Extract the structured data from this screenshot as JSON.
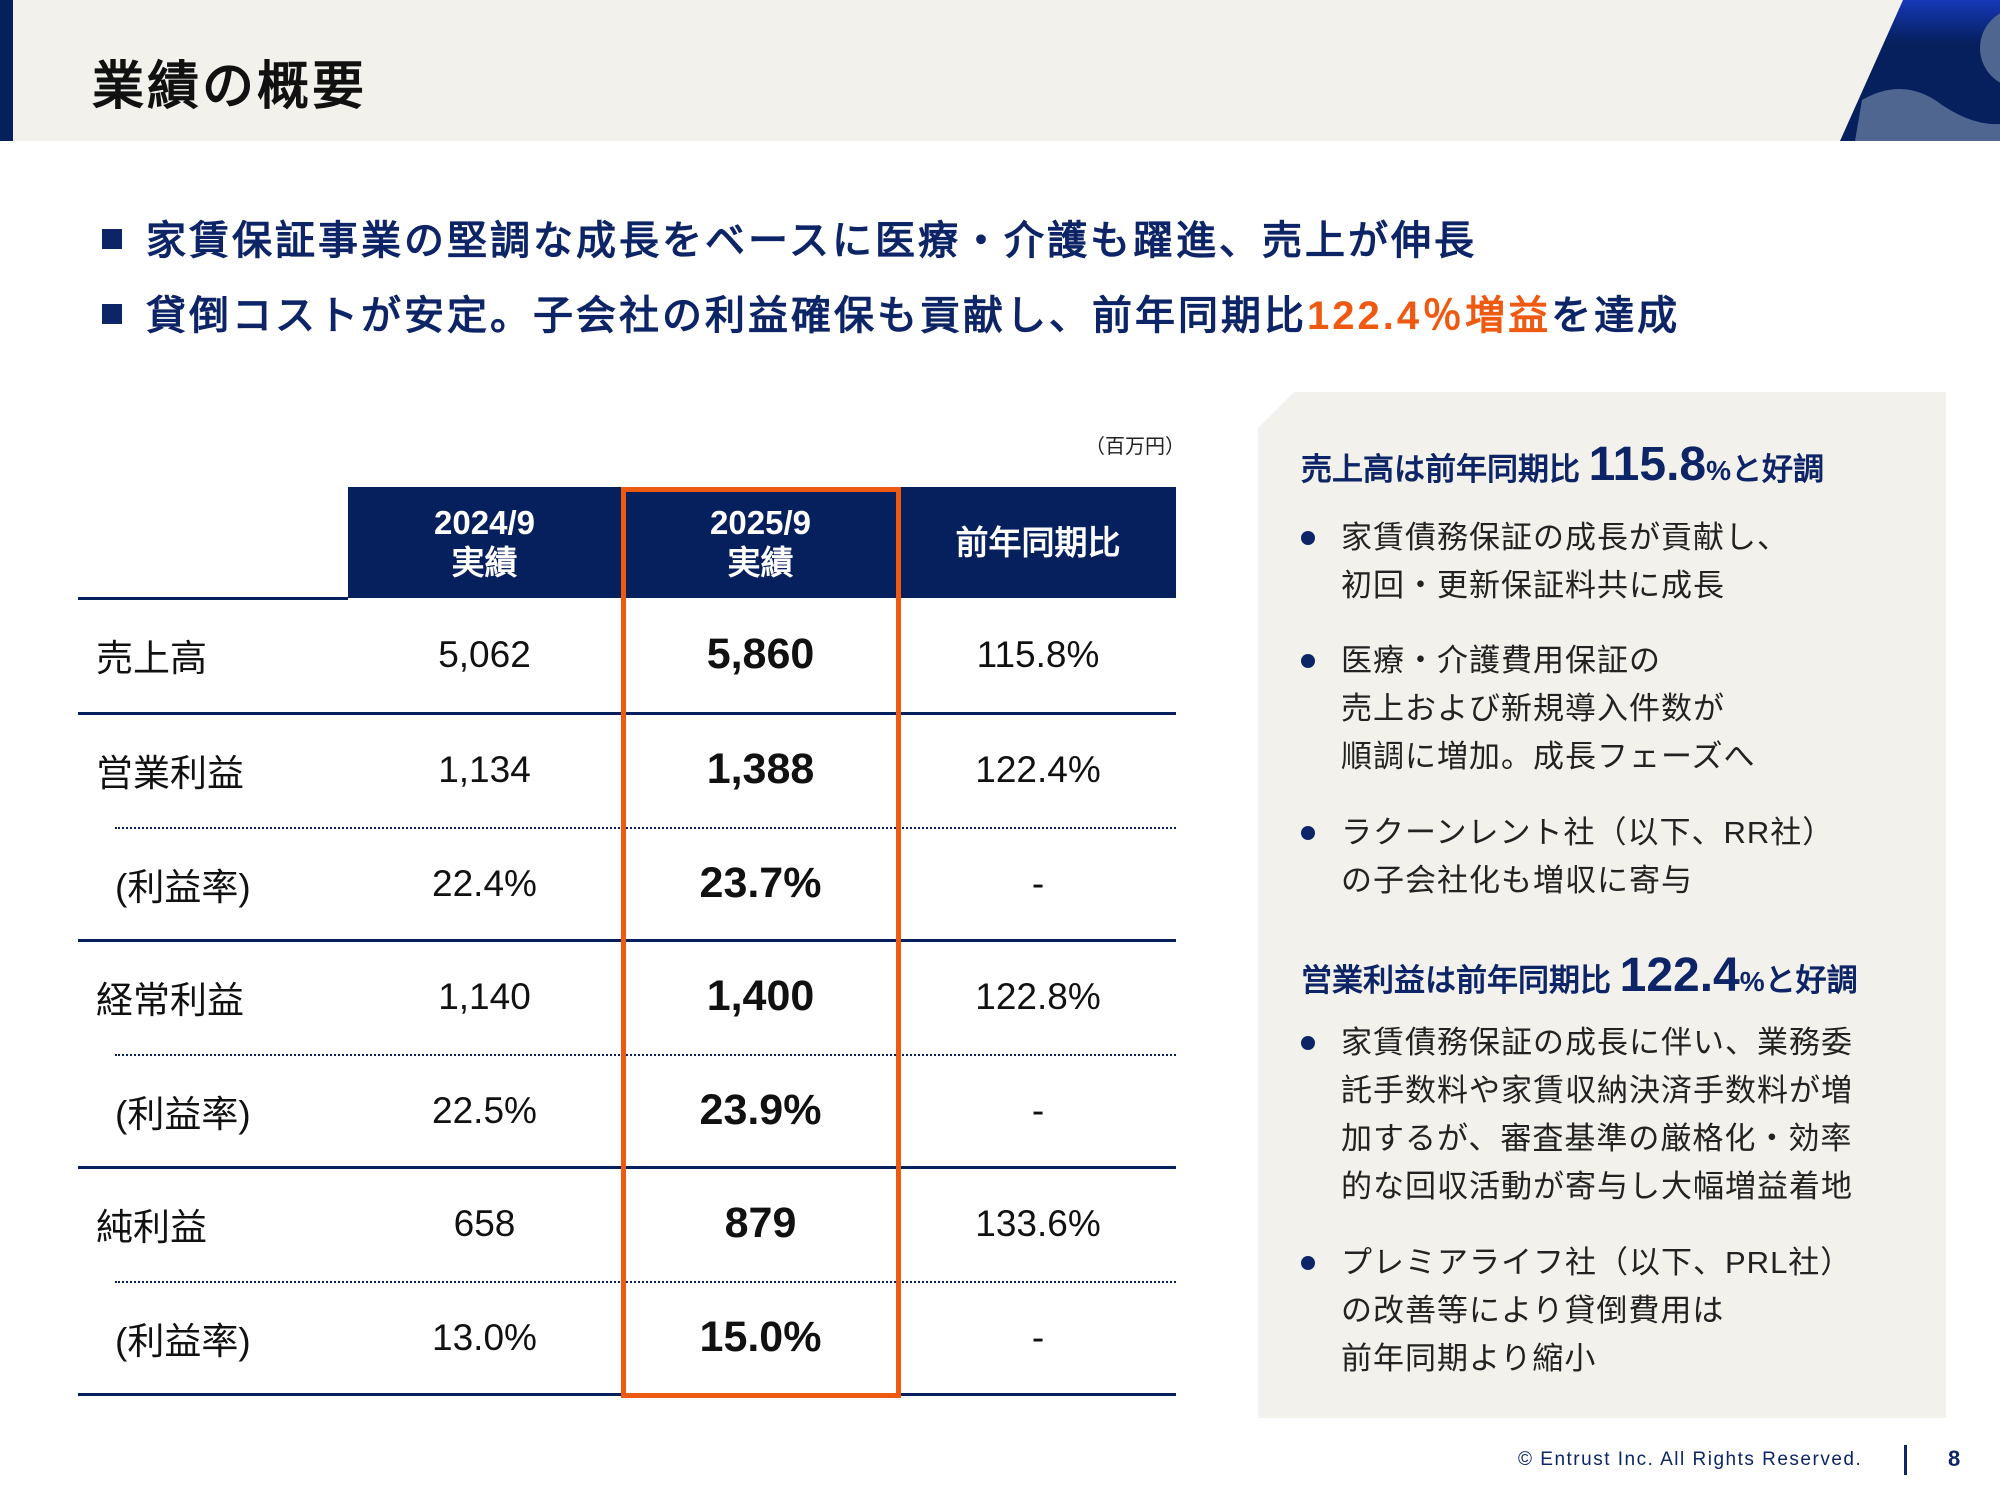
{
  "header": {
    "title": "業績の概要"
  },
  "bullets": [
    {
      "text": "家賃保証事業の堅調な成長をベースに医療・介護も躍進、売上が伸長"
    },
    {
      "text_before": "貸倒コストが安定。子会社の利益確保も貢献し、前年同期比",
      "highlight": "122.4％増益",
      "text_after": "を達成"
    }
  ],
  "colors": {
    "navy": "#06205e",
    "accent": "#ee5a12",
    "panel": "#f3f1ec"
  },
  "table": {
    "unit": "（百万円）",
    "headers": [
      {
        "line1": "2024/9",
        "line2": "実績"
      },
      {
        "line1": "2025/9",
        "line2": "実績"
      },
      {
        "line1": "前年同期比"
      }
    ],
    "rows": [
      {
        "label": "売上高",
        "prev": "5,062",
        "curr": "5,860",
        "yoy": "115.8%"
      },
      {
        "label": "営業利益",
        "prev": "1,134",
        "curr": "1,388",
        "yoy": "122.4%"
      },
      {
        "label": "(利益率)",
        "prev": "22.4%",
        "curr": "23.7%",
        "yoy": "-"
      },
      {
        "label": "経常利益",
        "prev": "1,140",
        "curr": "1,400",
        "yoy": "122.8%"
      },
      {
        "label": "(利益率)",
        "prev": "22.5%",
        "curr": "23.9%",
        "yoy": "-"
      },
      {
        "label": "純利益",
        "prev": "658",
        "curr": "879",
        "yoy": "133.6%"
      },
      {
        "label": "(利益率)",
        "prev": "13.0%",
        "curr": "15.0%",
        "yoy": "-"
      }
    ]
  },
  "panel": {
    "sections": [
      {
        "heading_pre": "売上高は前年同期比 ",
        "heading_num": "115.8",
        "heading_pct": "%",
        "heading_post": "と好調",
        "items": [
          {
            "lines": [
              "家賃債務保証の成長が貢献し、",
              "初回・更新保証料共に成長"
            ]
          },
          {
            "lines": [
              "医療・介護費用保証の",
              "売上および新規導入件数が",
              "順調に増加。成長フェーズへ"
            ]
          },
          {
            "lines": [
              "ラクーンレント社（以下、RR社）",
              "の子会社化も増収に寄与"
            ]
          }
        ]
      },
      {
        "heading_pre": "営業利益は前年同期比 ",
        "heading_num": "122.4",
        "heading_pct": "%",
        "heading_post": "と好調",
        "items": [
          {
            "lines": [
              "家賃債務保証の成長に伴い、業務委",
              "託手数料や家賃収納決済手数料が増",
              "加するが、審査基準の厳格化・効率",
              "的な回収活動が寄与し大幅増益着地"
            ]
          },
          {
            "lines": [
              "プレミアライフ社（以下、PRL社）",
              "の改善等により貸倒費用は",
              "前年同期より縮小"
            ]
          }
        ]
      }
    ]
  },
  "footer": {
    "copyright": "© Entrust Inc. All Rights Reserved.",
    "page": "8"
  }
}
